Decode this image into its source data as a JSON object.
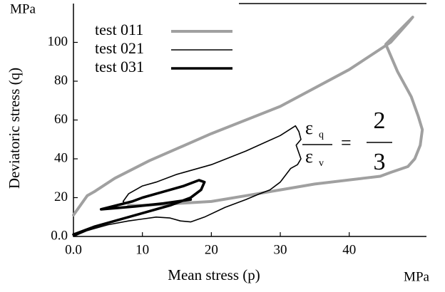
{
  "chart_data": {
    "type": "line",
    "x_unit": "MPa",
    "y_unit": "MPa",
    "x_label": "Mean stress (p)",
    "y_label": "Deviatoric stress (q)",
    "xlim": [
      0,
      51.2
    ],
    "ylim": [
      0,
      120
    ],
    "xticks": [
      {
        "value": 0,
        "label": "0.0"
      },
      10,
      20,
      30,
      40
    ],
    "yticks": [
      {
        "value": 0,
        "label": "0.0"
      },
      20,
      40,
      60,
      80,
      100
    ],
    "legend": "upper left",
    "series": [
      {
        "name": "test 011",
        "color": "#a0a0a0",
        "width": 4,
        "x": [
          0,
          1,
          2,
          3,
          6,
          11,
          20,
          30,
          40,
          46,
          48.5,
          49.2,
          45.3,
          47,
          49,
          50,
          50.6,
          50.3,
          49.5,
          48.5,
          46,
          44.5,
          42,
          35,
          30,
          25,
          20,
          15,
          10,
          8
        ],
        "values": [
          11,
          16,
          21,
          23,
          30,
          39,
          53,
          67,
          86,
          100,
          110,
          113,
          99,
          85,
          72,
          62,
          55,
          47,
          40,
          36,
          33,
          31,
          30,
          27,
          24,
          21,
          18,
          17,
          16,
          16
        ]
      },
      {
        "name": "test 021",
        "color": "#000000",
        "width": 1.6,
        "x": [
          0,
          2,
          5,
          8,
          10,
          12,
          14,
          15.5,
          17,
          19,
          22,
          25,
          27,
          28.5,
          30,
          31.5,
          32.5,
          33,
          32.3,
          33,
          32.7,
          32.2,
          30,
          25,
          20,
          15,
          12,
          10,
          8,
          7.2,
          7.5
        ],
        "values": [
          0,
          3,
          6,
          8,
          9,
          10,
          9.5,
          8,
          7.5,
          10,
          15,
          19,
          22,
          24,
          28,
          35,
          37,
          40,
          47,
          50,
          54,
          57,
          52,
          44,
          37,
          32,
          28,
          26,
          22,
          18,
          17
        ]
      },
      {
        "name": "test 031",
        "color": "#000000",
        "width": 3.6,
        "x": [
          0,
          3,
          6,
          10,
          14,
          17,
          18.5,
          19,
          18.2,
          16,
          13,
          10,
          8.5,
          4,
          9,
          13,
          17
        ],
        "values": [
          1,
          5,
          8,
          12,
          16,
          20,
          24,
          28,
          29,
          26,
          23,
          20,
          18,
          14,
          15.5,
          17,
          19
        ]
      }
    ],
    "annotation": {
      "num_symbol": "ε",
      "num_sub": "q",
      "den_symbol": "ε",
      "den_sub": "v",
      "equals": "=",
      "rhs_num": "2",
      "rhs_den": "3"
    }
  }
}
